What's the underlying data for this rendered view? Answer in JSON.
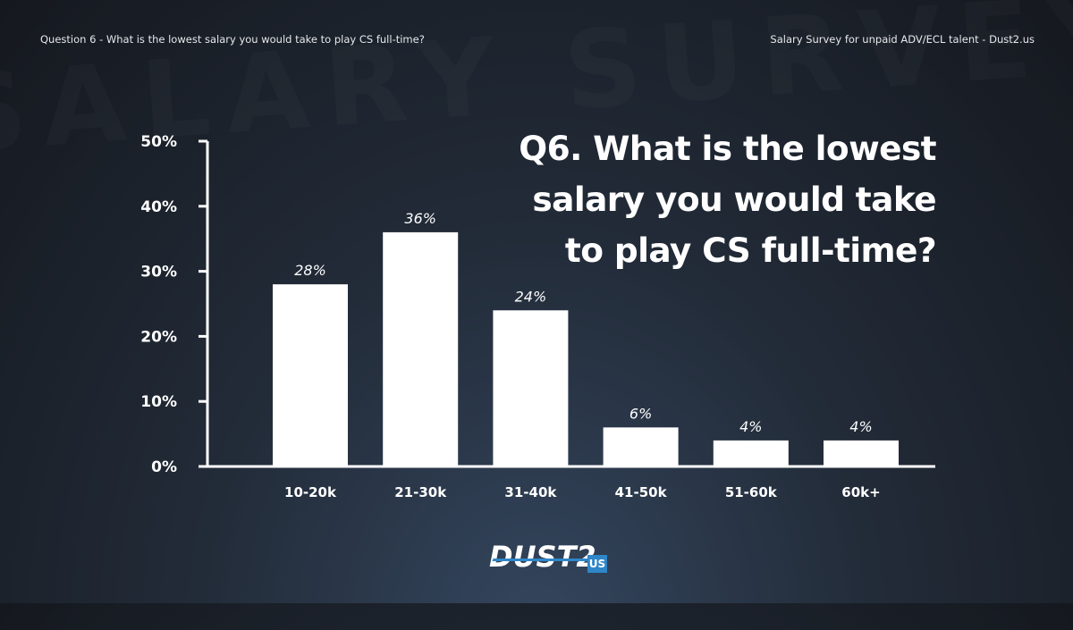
{
  "header": {
    "left": "Question 6 - What is the lowest salary you would take to play CS full-time?",
    "right": "Salary Survey for unpaid ADV/ECL talent - Dust2.us"
  },
  "title_lines": [
    "Q6. What is the lowest",
    "salary you would take",
    "to play CS full-time?"
  ],
  "logo": {
    "main": "DUST2",
    "badge": "US"
  },
  "watermark": "SALARY SURVEY SALARY SURVEY",
  "colors": {
    "bar": "#ffffff",
    "accent": "#2f86c8"
  },
  "chart_data": {
    "type": "bar",
    "categories": [
      "10-20k",
      "21-30k",
      "31-40k",
      "41-50k",
      "51-60k",
      "60k+"
    ],
    "values": [
      28,
      36,
      24,
      6,
      4,
      4
    ],
    "data_labels": [
      "28%",
      "36%",
      "24%",
      "6%",
      "4%",
      "4%"
    ],
    "yticks": [
      0,
      10,
      20,
      30,
      40,
      50
    ],
    "ytick_labels": [
      "0%",
      "10%",
      "20%",
      "30%",
      "40%",
      "50%"
    ],
    "ylim": [
      0,
      50
    ],
    "title": "Q6. What is the lowest salary you would take to play CS full-time?",
    "xlabel": "",
    "ylabel": "",
    "grid": false,
    "legend": "none"
  }
}
